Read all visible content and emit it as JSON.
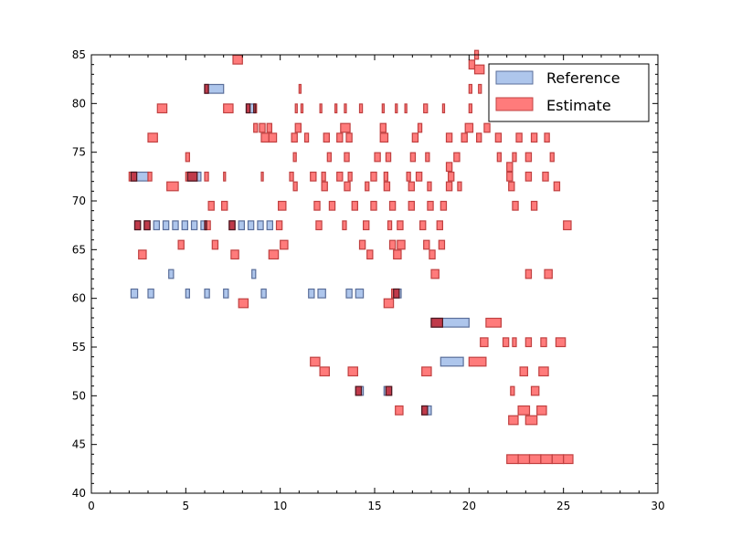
{
  "chart_data": {
    "type": "piano-roll",
    "xlim": [
      0,
      30
    ],
    "ylim": [
      40,
      85
    ],
    "xticks": [
      0,
      5,
      10,
      15,
      20,
      25,
      30
    ],
    "yticks": [
      40,
      45,
      50,
      55,
      60,
      65,
      70,
      75,
      80,
      85
    ],
    "grid": false,
    "legend_position": "top-right",
    "colors": {
      "reference_fill": "#aec6ec",
      "reference_edge": "#5a6e9a",
      "estimate_fill": "#ff7b7b",
      "estimate_edge": "#c04040",
      "overlap_fill": "#c03a4a",
      "overlap_edge": "#4a1a22"
    },
    "series": [
      {
        "name": "Reference",
        "notes": [
          [
            2.1,
            60.5,
            0.35
          ],
          [
            3.0,
            60.5,
            0.3
          ],
          [
            5.0,
            60.5,
            0.2
          ],
          [
            6.0,
            60.5,
            0.25
          ],
          [
            7.0,
            60.5,
            0.25
          ],
          [
            9.0,
            60.5,
            0.25
          ],
          [
            11.5,
            60.5,
            0.3
          ],
          [
            12.0,
            60.5,
            0.4
          ],
          [
            13.5,
            60.5,
            0.3
          ],
          [
            14.0,
            60.5,
            0.4
          ],
          [
            16.0,
            60.5,
            0.4
          ],
          [
            4.1,
            62.5,
            0.25
          ],
          [
            8.5,
            62.5,
            0.2
          ],
          [
            2.3,
            67.5,
            0.3
          ],
          [
            2.8,
            67.5,
            0.3
          ],
          [
            3.3,
            67.5,
            0.3
          ],
          [
            3.8,
            67.5,
            0.3
          ],
          [
            4.3,
            67.5,
            0.3
          ],
          [
            4.8,
            67.5,
            0.3
          ],
          [
            5.3,
            67.5,
            0.3
          ],
          [
            5.8,
            67.5,
            0.3
          ],
          [
            7.3,
            67.5,
            0.3
          ],
          [
            7.8,
            67.5,
            0.3
          ],
          [
            8.3,
            67.5,
            0.3
          ],
          [
            8.8,
            67.5,
            0.3
          ],
          [
            9.3,
            67.5,
            0.3
          ],
          [
            2.1,
            72.5,
            0.9
          ],
          [
            5.1,
            72.5,
            0.7
          ],
          [
            6.0,
            81.5,
            1.0
          ],
          [
            8.2,
            79.5,
            0.5
          ],
          [
            18.0,
            57.5,
            2.0
          ],
          [
            18.5,
            53.5,
            1.2
          ],
          [
            17.5,
            48.5,
            0.5
          ],
          [
            14.0,
            50.5,
            0.4
          ],
          [
            15.5,
            50.5,
            0.4
          ]
        ]
      },
      {
        "name": "Estimate",
        "notes": [
          [
            7.5,
            84.5,
            0.5
          ],
          [
            6.0,
            81.5,
            0.2
          ],
          [
            11.0,
            81.5,
            0.1
          ],
          [
            3.5,
            79.5,
            0.5
          ],
          [
            7.0,
            79.5,
            0.5
          ],
          [
            8.2,
            79.5,
            0.2
          ],
          [
            8.6,
            79.5,
            0.15
          ],
          [
            10.8,
            79.5,
            0.1
          ],
          [
            11.1,
            79.5,
            0.1
          ],
          [
            12.1,
            79.5,
            0.1
          ],
          [
            12.9,
            79.5,
            0.1
          ],
          [
            13.4,
            79.5,
            0.1
          ],
          [
            14.2,
            79.5,
            0.15
          ],
          [
            15.4,
            79.5,
            0.1
          ],
          [
            16.1,
            79.5,
            0.1
          ],
          [
            16.6,
            79.5,
            0.1
          ],
          [
            17.6,
            79.5,
            0.2
          ],
          [
            18.6,
            79.5,
            0.1
          ],
          [
            20.0,
            79.5,
            0.15
          ],
          [
            8.6,
            77.5,
            0.2
          ],
          [
            8.9,
            77.5,
            0.3
          ],
          [
            9.3,
            77.5,
            0.25
          ],
          [
            10.8,
            77.5,
            0.3
          ],
          [
            13.2,
            77.5,
            0.5
          ],
          [
            15.3,
            77.5,
            0.3
          ],
          [
            17.3,
            77.5,
            0.2
          ],
          [
            19.8,
            77.5,
            0.4
          ],
          [
            20.8,
            77.5,
            0.3
          ],
          [
            3.0,
            76.5,
            0.5
          ],
          [
            9.0,
            76.5,
            0.4
          ],
          [
            9.4,
            76.5,
            0.4
          ],
          [
            10.6,
            76.5,
            0.3
          ],
          [
            11.3,
            76.5,
            0.2
          ],
          [
            12.3,
            76.5,
            0.3
          ],
          [
            13.0,
            76.5,
            0.3
          ],
          [
            13.5,
            76.5,
            0.3
          ],
          [
            15.3,
            76.5,
            0.4
          ],
          [
            17.0,
            76.5,
            0.3
          ],
          [
            18.8,
            76.5,
            0.3
          ],
          [
            19.6,
            76.5,
            0.3
          ],
          [
            20.4,
            76.5,
            0.25
          ],
          [
            21.4,
            76.5,
            0.3
          ],
          [
            22.5,
            76.5,
            0.3
          ],
          [
            23.3,
            76.5,
            0.3
          ],
          [
            24.0,
            76.5,
            0.25
          ],
          [
            5.0,
            74.5,
            0.2
          ],
          [
            10.7,
            74.5,
            0.15
          ],
          [
            12.5,
            74.5,
            0.2
          ],
          [
            13.4,
            74.5,
            0.25
          ],
          [
            15.0,
            74.5,
            0.3
          ],
          [
            15.6,
            74.5,
            0.25
          ],
          [
            16.9,
            74.5,
            0.25
          ],
          [
            17.7,
            74.5,
            0.2
          ],
          [
            19.2,
            74.5,
            0.3
          ],
          [
            21.5,
            74.5,
            0.2
          ],
          [
            22.3,
            74.5,
            0.2
          ],
          [
            23.0,
            74.5,
            0.3
          ],
          [
            24.3,
            74.5,
            0.2
          ],
          [
            18.8,
            73.5,
            0.3
          ],
          [
            22.0,
            73.5,
            0.3
          ],
          [
            2.0,
            72.5,
            0.4
          ],
          [
            3.0,
            72.5,
            0.2
          ],
          [
            5.0,
            72.5,
            0.6
          ],
          [
            6.0,
            72.5,
            0.2
          ],
          [
            7.0,
            72.5,
            0.1
          ],
          [
            9.0,
            72.5,
            0.1
          ],
          [
            10.5,
            72.5,
            0.2
          ],
          [
            11.6,
            72.5,
            0.3
          ],
          [
            12.2,
            72.5,
            0.2
          ],
          [
            13.0,
            72.5,
            0.3
          ],
          [
            13.6,
            72.5,
            0.2
          ],
          [
            14.8,
            72.5,
            0.3
          ],
          [
            15.5,
            72.5,
            0.2
          ],
          [
            16.7,
            72.5,
            0.2
          ],
          [
            17.2,
            72.5,
            0.3
          ],
          [
            18.9,
            72.5,
            0.3
          ],
          [
            22.0,
            72.5,
            0.3
          ],
          [
            23.0,
            72.5,
            0.3
          ],
          [
            23.9,
            72.5,
            0.3
          ],
          [
            4.0,
            71.5,
            0.6
          ],
          [
            10.7,
            71.5,
            0.2
          ],
          [
            12.2,
            71.5,
            0.3
          ],
          [
            13.4,
            71.5,
            0.3
          ],
          [
            14.5,
            71.5,
            0.2
          ],
          [
            15.5,
            71.5,
            0.3
          ],
          [
            16.8,
            71.5,
            0.3
          ],
          [
            17.8,
            71.5,
            0.2
          ],
          [
            18.8,
            71.5,
            0.3
          ],
          [
            19.4,
            71.5,
            0.2
          ],
          [
            22.1,
            71.5,
            0.3
          ],
          [
            24.5,
            71.5,
            0.3
          ],
          [
            6.2,
            69.5,
            0.3
          ],
          [
            6.9,
            69.5,
            0.3
          ],
          [
            9.9,
            69.5,
            0.4
          ],
          [
            11.8,
            69.5,
            0.3
          ],
          [
            12.6,
            69.5,
            0.3
          ],
          [
            13.8,
            69.5,
            0.3
          ],
          [
            14.8,
            69.5,
            0.3
          ],
          [
            15.8,
            69.5,
            0.3
          ],
          [
            16.8,
            69.5,
            0.3
          ],
          [
            17.8,
            69.5,
            0.3
          ],
          [
            18.5,
            69.5,
            0.3
          ],
          [
            22.3,
            69.5,
            0.3
          ],
          [
            23.3,
            69.5,
            0.3
          ],
          [
            2.3,
            67.5,
            0.3
          ],
          [
            2.8,
            67.5,
            0.3
          ],
          [
            6.0,
            67.5,
            0.3
          ],
          [
            7.3,
            67.5,
            0.3
          ],
          [
            9.8,
            67.5,
            0.3
          ],
          [
            11.9,
            67.5,
            0.3
          ],
          [
            13.3,
            67.5,
            0.2
          ],
          [
            14.4,
            67.5,
            0.3
          ],
          [
            15.7,
            67.5,
            0.2
          ],
          [
            16.2,
            67.5,
            0.3
          ],
          [
            17.4,
            67.5,
            0.3
          ],
          [
            18.3,
            67.5,
            0.3
          ],
          [
            25.0,
            67.5,
            0.4
          ],
          [
            4.6,
            65.5,
            0.3
          ],
          [
            6.4,
            65.5,
            0.3
          ],
          [
            10.0,
            65.5,
            0.4
          ],
          [
            14.2,
            65.5,
            0.3
          ],
          [
            15.8,
            65.5,
            0.3
          ],
          [
            16.2,
            65.5,
            0.4
          ],
          [
            17.6,
            65.5,
            0.3
          ],
          [
            18.4,
            65.5,
            0.3
          ],
          [
            2.5,
            64.5,
            0.4
          ],
          [
            7.4,
            64.5,
            0.4
          ],
          [
            9.4,
            64.5,
            0.5
          ],
          [
            14.6,
            64.5,
            0.3
          ],
          [
            16.0,
            64.5,
            0.4
          ],
          [
            17.9,
            64.5,
            0.3
          ],
          [
            18.0,
            62.5,
            0.4
          ],
          [
            23.0,
            62.5,
            0.3
          ],
          [
            24.0,
            62.5,
            0.4
          ],
          [
            15.9,
            60.5,
            0.4
          ],
          [
            7.8,
            59.5,
            0.5
          ],
          [
            15.5,
            59.5,
            0.5
          ],
          [
            18.0,
            57.5,
            0.6
          ],
          [
            20.9,
            57.5,
            0.8
          ],
          [
            20.6,
            55.5,
            0.4
          ],
          [
            21.8,
            55.5,
            0.3
          ],
          [
            22.3,
            55.5,
            0.2
          ],
          [
            23.0,
            55.5,
            0.3
          ],
          [
            23.8,
            55.5,
            0.3
          ],
          [
            24.6,
            55.5,
            0.5
          ],
          [
            11.6,
            53.5,
            0.5
          ],
          [
            20.0,
            53.5,
            0.9
          ],
          [
            12.1,
            52.5,
            0.5
          ],
          [
            13.6,
            52.5,
            0.5
          ],
          [
            17.5,
            52.5,
            0.5
          ],
          [
            22.7,
            52.5,
            0.4
          ],
          [
            23.7,
            52.5,
            0.5
          ],
          [
            14.0,
            50.5,
            0.3
          ],
          [
            15.6,
            50.5,
            0.3
          ],
          [
            22.2,
            50.5,
            0.2
          ],
          [
            23.3,
            50.5,
            0.4
          ],
          [
            16.1,
            48.5,
            0.4
          ],
          [
            17.5,
            48.5,
            0.3
          ],
          [
            22.6,
            48.5,
            0.6
          ],
          [
            23.6,
            48.5,
            0.5
          ],
          [
            22.1,
            47.5,
            0.5
          ],
          [
            23.0,
            47.5,
            0.6
          ],
          [
            22.0,
            43.5,
            0.6
          ],
          [
            22.6,
            43.5,
            0.6
          ],
          [
            23.2,
            43.5,
            0.6
          ],
          [
            23.8,
            43.5,
            0.6
          ],
          [
            24.4,
            43.5,
            0.6
          ],
          [
            25.0,
            43.5,
            0.5
          ],
          [
            20.0,
            84.0,
            0.3
          ],
          [
            20.3,
            83.5,
            0.5
          ],
          [
            20.0,
            81.5,
            0.15
          ],
          [
            20.5,
            81.5,
            0.15
          ],
          [
            20.3,
            85.0,
            0.2
          ]
        ]
      }
    ]
  }
}
